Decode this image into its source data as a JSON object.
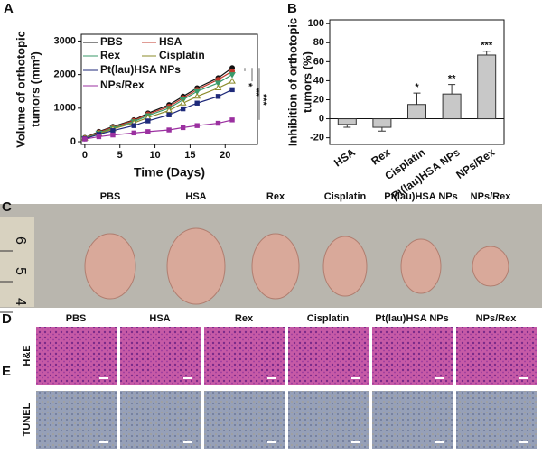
{
  "chart_data": [
    {
      "type": "line",
      "panel": "A",
      "x_label": "Time (Days)",
      "y_label": [
        "Volume of orthotopic",
        "tumors (mm³)"
      ],
      "x": [
        0,
        2,
        4,
        7,
        9,
        12,
        14,
        16,
        19,
        21
      ],
      "xlim": [
        -0.5,
        24.6
      ],
      "xticks": [
        0,
        5,
        10,
        15,
        20
      ],
      "ylim": [
        -80,
        3200
      ],
      "yticks": [
        0,
        1000,
        2000,
        3000
      ],
      "series": [
        {
          "name": "PBS",
          "color": "#111111",
          "marker": "circle",
          "values": [
            120,
            300,
            450,
            650,
            850,
            1100,
            1350,
            1600,
            1900,
            2200
          ]
        },
        {
          "name": "HSA",
          "color": "#c0392b",
          "marker": "circle",
          "values": [
            110,
            280,
            430,
            630,
            820,
            1050,
            1300,
            1550,
            1850,
            2100
          ]
        },
        {
          "name": "Rex",
          "color": "#3a9a6a",
          "marker": "triangle-down",
          "values": [
            100,
            260,
            400,
            600,
            780,
            1000,
            1250,
            1500,
            1750,
            2000
          ]
        },
        {
          "name": "Cisplatin",
          "color": "#8b8b2a",
          "marker": "triangle-open",
          "values": [
            100,
            240,
            380,
            560,
            720,
            930,
            1150,
            1350,
            1600,
            1800
          ]
        },
        {
          "name": "Pt(lau)HSA NPs",
          "color": "#1f2a7a",
          "marker": "square",
          "values": [
            90,
            220,
            330,
            480,
            620,
            800,
            980,
            1150,
            1350,
            1550
          ]
        },
        {
          "name": "NPs/Rex",
          "color": "#9b30a0",
          "marker": "square",
          "values": [
            80,
            150,
            200,
            260,
            300,
            350,
            420,
            480,
            550,
            650
          ]
        }
      ],
      "annotations": [
        "*",
        "**",
        "***"
      ]
    },
    {
      "type": "bar",
      "panel": "B",
      "y_label": [
        "Inhibition of orthotopic",
        "tumors (%)"
      ],
      "categories": [
        "HSA",
        "Rex",
        "Cisplatin",
        "Pt(lau)HSA NPs",
        "NPs/Rex"
      ],
      "values": [
        -6,
        -9,
        15,
        26,
        67
      ],
      "errors": [
        3,
        4,
        12,
        10,
        4
      ],
      "significance": [
        null,
        null,
        "*",
        "**",
        "***"
      ],
      "color": "#c8c8c8",
      "ylim": [
        -27,
        104
      ],
      "yticks": [
        -20,
        0,
        20,
        40,
        60,
        80,
        100
      ]
    }
  ],
  "photos": {
    "C": {
      "panel": "C",
      "columns": [
        "PBS",
        "HSA",
        "Rex",
        "Cisplatin",
        "Pt(lau)HSA NPs",
        "NPs/Rex"
      ],
      "ruler": [
        "6",
        "5",
        "4"
      ]
    },
    "D": {
      "panel": "D",
      "row": "H&E",
      "columns": [
        "PBS",
        "HSA",
        "Rex",
        "Cisplatin",
        "Pt(lau)HSA NPs",
        "NPs/Rex"
      ]
    },
    "E": {
      "panel": "E",
      "row": "TUNEL"
    }
  }
}
